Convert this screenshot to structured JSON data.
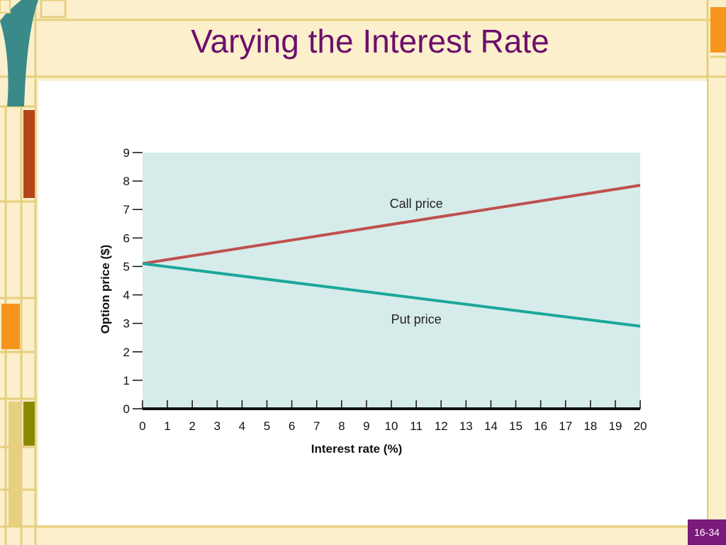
{
  "slide": {
    "title": "Varying the Interest Rate",
    "page_number": "16-34"
  },
  "chart_data": {
    "type": "line",
    "title": "",
    "xlabel": "Interest rate (%)",
    "ylabel": "Option price ($)",
    "xlim": [
      0,
      20
    ],
    "ylim": [
      0,
      9
    ],
    "x_ticks": [
      0,
      1,
      2,
      3,
      4,
      5,
      6,
      7,
      8,
      9,
      10,
      11,
      12,
      13,
      14,
      15,
      16,
      17,
      18,
      19,
      20
    ],
    "y_ticks": [
      0,
      1,
      2,
      3,
      4,
      5,
      6,
      7,
      8,
      9
    ],
    "grid": false,
    "background_color": "#d6ecea",
    "series": [
      {
        "name": "Call price",
        "color": "#c0504d",
        "x": [
          0,
          20
        ],
        "y": [
          5.1,
          7.85
        ]
      },
      {
        "name": "Put price",
        "color": "#1aa79b",
        "x": [
          0,
          20
        ],
        "y": [
          5.1,
          2.9
        ]
      }
    ]
  },
  "colors": {
    "frame_cream": "#fbefcc",
    "frame_line": "#e6cf7e",
    "teal_accent": "#3a8a8a",
    "rust_accent": "#b5451b",
    "orange_accent": "#f7941d",
    "olive_accent": "#8a8a00",
    "title_color": "#6b0f6b",
    "badge_color": "#7a1a7a"
  }
}
